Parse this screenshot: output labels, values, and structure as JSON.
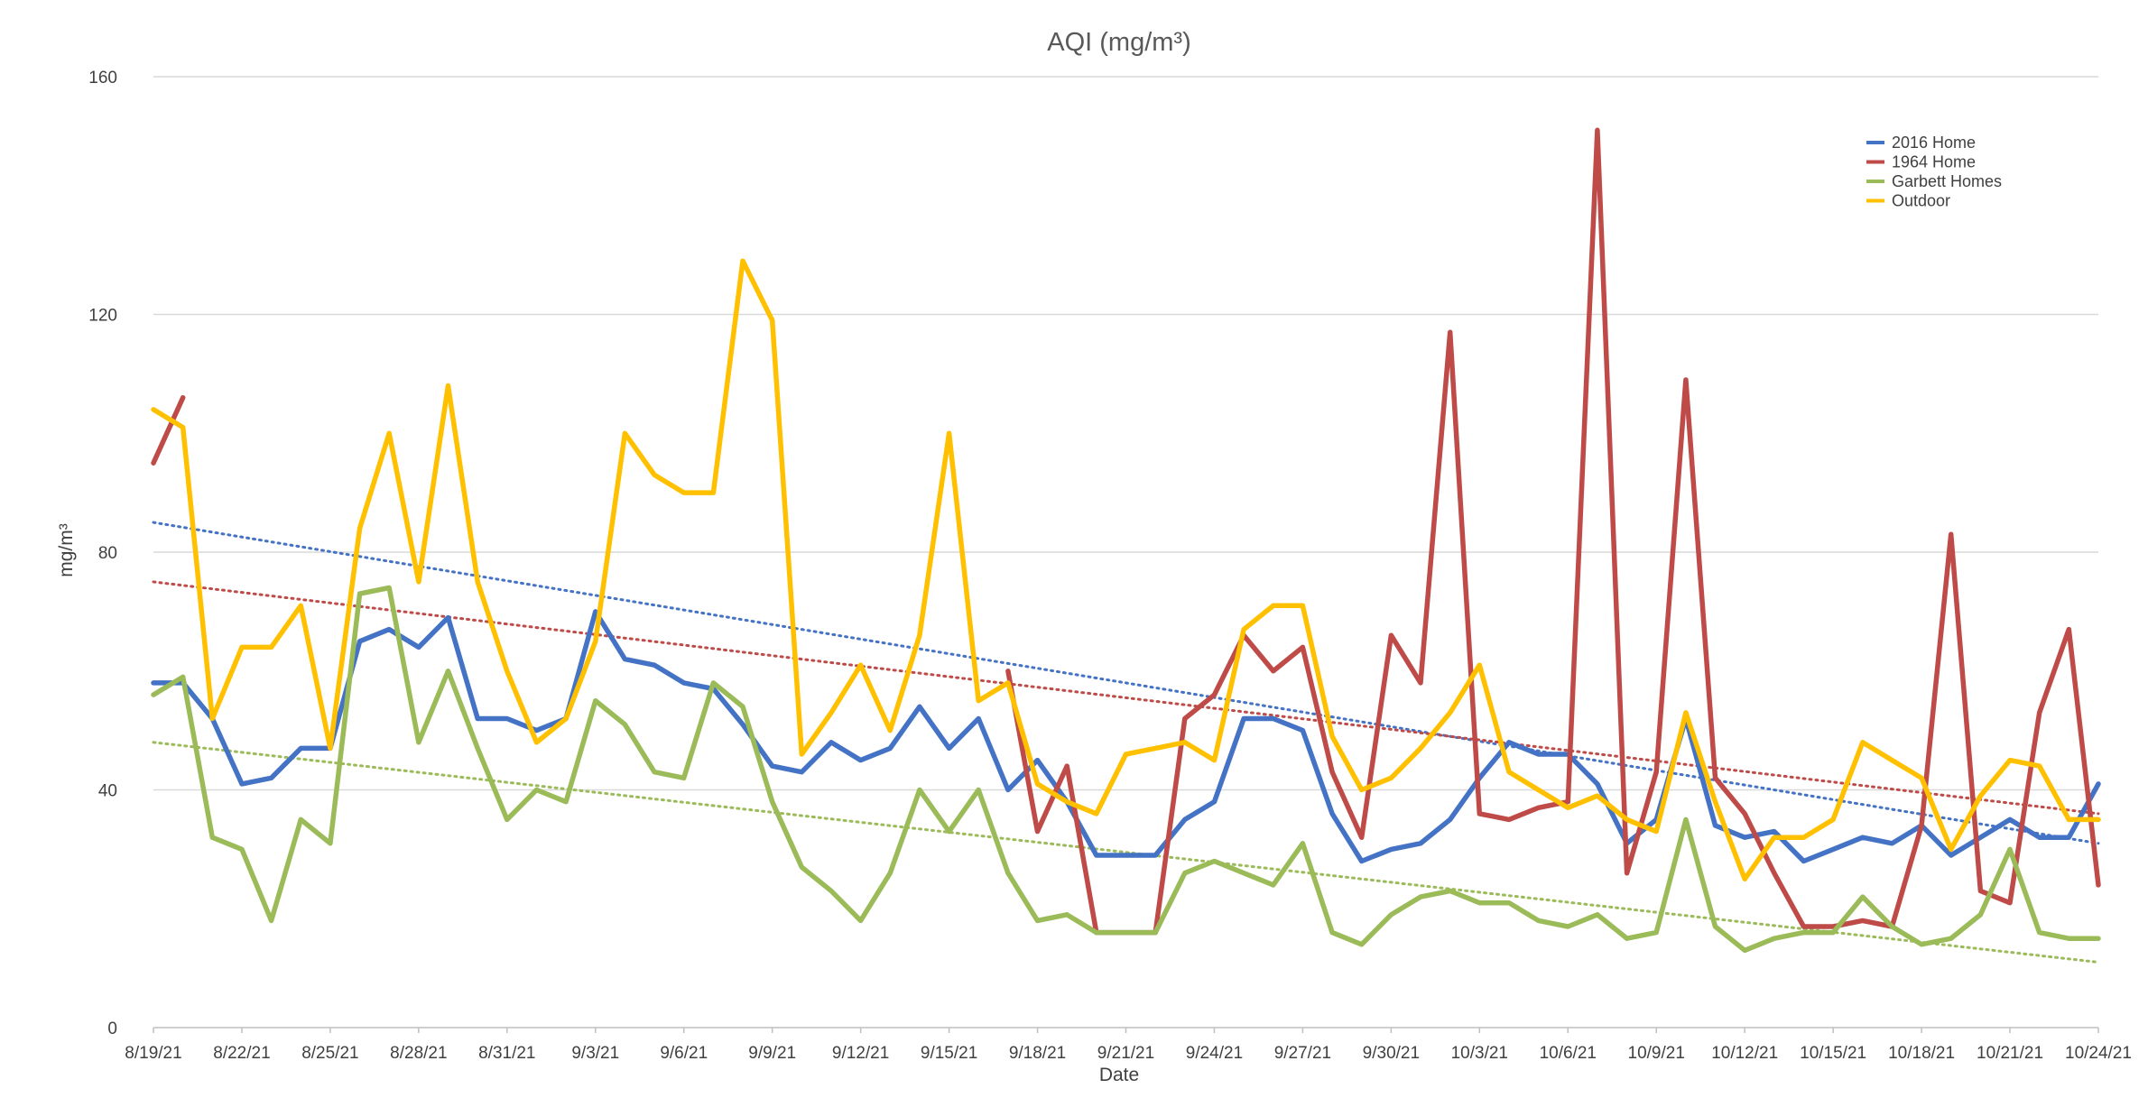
{
  "chart_data": {
    "type": "line",
    "title": "AQI (mg/m³)",
    "xlabel": "Date",
    "ylabel": "mg/m³",
    "ylim": [
      0,
      160
    ],
    "yticks": [
      0,
      40,
      80,
      120,
      160
    ],
    "grid": "horizontal",
    "legend_position": "top-right",
    "x_start": "2021-08-19",
    "x_end": "2021-10-24",
    "xtick_labels": [
      "8/19/21",
      "8/22/21",
      "8/25/21",
      "8/28/21",
      "8/31/21",
      "9/3/21",
      "9/6/21",
      "9/9/21",
      "9/12/21",
      "9/15/21",
      "9/18/21",
      "9/21/21",
      "9/24/21",
      "9/27/21",
      "9/30/21",
      "10/3/21",
      "10/6/21",
      "10/9/21",
      "10/12/21",
      "10/15/21",
      "10/18/21",
      "10/21/21",
      "10/24/21"
    ],
    "series": [
      {
        "name": "2016 Home",
        "color": "#4472c4",
        "values": [
          [
            "2021-08-19",
            58
          ],
          [
            "2021-08-20",
            58
          ],
          [
            "2021-08-21",
            52
          ],
          [
            "2021-08-22",
            41
          ],
          [
            "2021-08-23",
            42
          ],
          [
            "2021-08-24",
            47
          ],
          [
            "2021-08-25",
            47
          ],
          [
            "2021-08-26",
            65
          ],
          [
            "2021-08-27",
            67
          ],
          [
            "2021-08-28",
            64
          ],
          [
            "2021-08-29",
            69
          ],
          [
            "2021-08-30",
            52
          ],
          [
            "2021-08-31",
            52
          ],
          [
            "2021-09-01",
            50
          ],
          [
            "2021-09-02",
            52
          ],
          [
            "2021-09-03",
            70
          ],
          [
            "2021-09-04",
            62
          ],
          [
            "2021-09-05",
            61
          ],
          [
            "2021-09-06",
            58
          ],
          [
            "2021-09-07",
            57
          ],
          [
            "2021-09-08",
            51
          ],
          [
            "2021-09-09",
            44
          ],
          [
            "2021-09-10",
            43
          ],
          [
            "2021-09-11",
            48
          ],
          [
            "2021-09-12",
            45
          ],
          [
            "2021-09-13",
            47
          ],
          [
            "2021-09-14",
            54
          ],
          [
            "2021-09-15",
            47
          ],
          [
            "2021-09-16",
            52
          ],
          [
            "2021-09-17",
            40
          ],
          [
            "2021-09-18",
            45
          ],
          [
            "2021-09-19",
            38
          ],
          [
            "2021-09-20",
            29
          ],
          [
            "2021-09-21",
            29
          ],
          [
            "2021-09-22",
            29
          ],
          [
            "2021-09-23",
            35
          ],
          [
            "2021-09-24",
            38
          ],
          [
            "2021-09-25",
            52
          ],
          [
            "2021-09-26",
            52
          ],
          [
            "2021-09-27",
            50
          ],
          [
            "2021-09-28",
            36
          ],
          [
            "2021-09-29",
            28
          ],
          [
            "2021-09-30",
            30
          ],
          [
            "2021-10-01",
            31
          ],
          [
            "2021-10-02",
            35
          ],
          [
            "2021-10-03",
            42
          ],
          [
            "2021-10-04",
            48
          ],
          [
            "2021-10-05",
            46
          ],
          [
            "2021-10-06",
            46
          ],
          [
            "2021-10-07",
            41
          ],
          [
            "2021-10-08",
            31
          ],
          [
            "2021-10-09",
            35
          ],
          [
            "2021-10-10",
            52
          ],
          [
            "2021-10-11",
            34
          ],
          [
            "2021-10-12",
            32
          ],
          [
            "2021-10-13",
            33
          ],
          [
            "2021-10-14",
            28
          ],
          [
            "2021-10-15",
            30
          ],
          [
            "2021-10-16",
            32
          ],
          [
            "2021-10-17",
            31
          ],
          [
            "2021-10-18",
            34
          ],
          [
            "2021-10-19",
            29
          ],
          [
            "2021-10-20",
            32
          ],
          [
            "2021-10-21",
            35
          ],
          [
            "2021-10-22",
            32
          ],
          [
            "2021-10-23",
            32
          ],
          [
            "2021-10-24",
            41
          ]
        ],
        "trend": [
          85,
          31
        ]
      },
      {
        "name": "1964 Home",
        "color": "#be4b48",
        "values": [
          [
            "2021-08-19",
            95
          ],
          [
            "2021-08-20",
            106
          ],
          [
            "2021-09-17",
            60
          ],
          [
            "2021-09-18",
            33
          ],
          [
            "2021-09-19",
            44
          ],
          [
            "2021-09-20",
            16
          ],
          [
            "2021-09-21",
            16
          ],
          [
            "2021-09-22",
            16
          ],
          [
            "2021-09-23",
            52
          ],
          [
            "2021-09-24",
            56
          ],
          [
            "2021-09-25",
            66
          ],
          [
            "2021-09-26",
            60
          ],
          [
            "2021-09-27",
            64
          ],
          [
            "2021-09-28",
            43
          ],
          [
            "2021-09-29",
            32
          ],
          [
            "2021-09-30",
            66
          ],
          [
            "2021-10-01",
            58
          ],
          [
            "2021-10-02",
            117
          ],
          [
            "2021-10-03",
            36
          ],
          [
            "2021-10-04",
            35
          ],
          [
            "2021-10-05",
            37
          ],
          [
            "2021-10-06",
            38
          ],
          [
            "2021-10-07",
            151
          ],
          [
            "2021-10-08",
            26
          ],
          [
            "2021-10-09",
            43
          ],
          [
            "2021-10-10",
            109
          ],
          [
            "2021-10-11",
            42
          ],
          [
            "2021-10-12",
            36
          ],
          [
            "2021-10-13",
            26
          ],
          [
            "2021-10-14",
            17
          ],
          [
            "2021-10-15",
            17
          ],
          [
            "2021-10-16",
            18
          ],
          [
            "2021-10-17",
            17
          ],
          [
            "2021-10-18",
            34
          ],
          [
            "2021-10-19",
            83
          ],
          [
            "2021-10-20",
            23
          ],
          [
            "2021-10-21",
            21
          ],
          [
            "2021-10-22",
            53
          ],
          [
            "2021-10-23",
            67
          ],
          [
            "2021-10-24",
            24
          ]
        ],
        "trend": [
          75,
          36
        ]
      },
      {
        "name": "Garbett Homes",
        "color": "#9bbb59",
        "values": [
          [
            "2021-08-19",
            56
          ],
          [
            "2021-08-20",
            59
          ],
          [
            "2021-08-21",
            32
          ],
          [
            "2021-08-22",
            30
          ],
          [
            "2021-08-23",
            18
          ],
          [
            "2021-08-24",
            35
          ],
          [
            "2021-08-25",
            31
          ],
          [
            "2021-08-26",
            73
          ],
          [
            "2021-08-27",
            74
          ],
          [
            "2021-08-28",
            48
          ],
          [
            "2021-08-29",
            60
          ],
          [
            "2021-08-30",
            47
          ],
          [
            "2021-08-31",
            35
          ],
          [
            "2021-09-01",
            40
          ],
          [
            "2021-09-02",
            38
          ],
          [
            "2021-09-03",
            55
          ],
          [
            "2021-09-04",
            51
          ],
          [
            "2021-09-05",
            43
          ],
          [
            "2021-09-06",
            42
          ],
          [
            "2021-09-07",
            58
          ],
          [
            "2021-09-08",
            54
          ],
          [
            "2021-09-09",
            38
          ],
          [
            "2021-09-10",
            27
          ],
          [
            "2021-09-11",
            23
          ],
          [
            "2021-09-12",
            18
          ],
          [
            "2021-09-13",
            26
          ],
          [
            "2021-09-14",
            40
          ],
          [
            "2021-09-15",
            33
          ],
          [
            "2021-09-16",
            40
          ],
          [
            "2021-09-17",
            26
          ],
          [
            "2021-09-18",
            18
          ],
          [
            "2021-09-19",
            19
          ],
          [
            "2021-09-20",
            16
          ],
          [
            "2021-09-21",
            16
          ],
          [
            "2021-09-22",
            16
          ],
          [
            "2021-09-23",
            26
          ],
          [
            "2021-09-24",
            28
          ],
          [
            "2021-09-25",
            26
          ],
          [
            "2021-09-26",
            24
          ],
          [
            "2021-09-27",
            31
          ],
          [
            "2021-09-28",
            16
          ],
          [
            "2021-09-29",
            14
          ],
          [
            "2021-09-30",
            19
          ],
          [
            "2021-10-01",
            22
          ],
          [
            "2021-10-02",
            23
          ],
          [
            "2021-10-03",
            21
          ],
          [
            "2021-10-04",
            21
          ],
          [
            "2021-10-05",
            18
          ],
          [
            "2021-10-06",
            17
          ],
          [
            "2021-10-07",
            19
          ],
          [
            "2021-10-08",
            15
          ],
          [
            "2021-10-09",
            16
          ],
          [
            "2021-10-10",
            35
          ],
          [
            "2021-10-11",
            17
          ],
          [
            "2021-10-12",
            13
          ],
          [
            "2021-10-13",
            15
          ],
          [
            "2021-10-14",
            16
          ],
          [
            "2021-10-15",
            16
          ],
          [
            "2021-10-16",
            22
          ],
          [
            "2021-10-17",
            17
          ],
          [
            "2021-10-18",
            14
          ],
          [
            "2021-10-19",
            15
          ],
          [
            "2021-10-20",
            19
          ],
          [
            "2021-10-21",
            30
          ],
          [
            "2021-10-22",
            16
          ],
          [
            "2021-10-23",
            15
          ],
          [
            "2021-10-24",
            15
          ]
        ],
        "trend": [
          48,
          11
        ]
      },
      {
        "name": "Outdoor",
        "color": "#ffc000",
        "values": [
          [
            "2021-08-19",
            104
          ],
          [
            "2021-08-20",
            101
          ],
          [
            "2021-08-21",
            52
          ],
          [
            "2021-08-22",
            64
          ],
          [
            "2021-08-23",
            64
          ],
          [
            "2021-08-24",
            71
          ],
          [
            "2021-08-25",
            47
          ],
          [
            "2021-08-26",
            84
          ],
          [
            "2021-08-27",
            100
          ],
          [
            "2021-08-28",
            75
          ],
          [
            "2021-08-29",
            108
          ],
          [
            "2021-08-30",
            75
          ],
          [
            "2021-08-31",
            60
          ],
          [
            "2021-09-01",
            48
          ],
          [
            "2021-09-02",
            52
          ],
          [
            "2021-09-03",
            65
          ],
          [
            "2021-09-04",
            100
          ],
          [
            "2021-09-05",
            93
          ],
          [
            "2021-09-06",
            90
          ],
          [
            "2021-09-07",
            90
          ],
          [
            "2021-09-08",
            129
          ],
          [
            "2021-09-09",
            119
          ],
          [
            "2021-09-10",
            46
          ],
          [
            "2021-09-11",
            53
          ],
          [
            "2021-09-12",
            61
          ],
          [
            "2021-09-13",
            50
          ],
          [
            "2021-09-14",
            66
          ],
          [
            "2021-09-15",
            100
          ],
          [
            "2021-09-16",
            55
          ],
          [
            "2021-09-17",
            58
          ],
          [
            "2021-09-18",
            41
          ],
          [
            "2021-09-19",
            38
          ],
          [
            "2021-09-20",
            36
          ],
          [
            "2021-09-21",
            46
          ],
          [
            "2021-09-22",
            47
          ],
          [
            "2021-09-23",
            48
          ],
          [
            "2021-09-24",
            45
          ],
          [
            "2021-09-25",
            67
          ],
          [
            "2021-09-26",
            71
          ],
          [
            "2021-09-27",
            71
          ],
          [
            "2021-09-28",
            49
          ],
          [
            "2021-09-29",
            40
          ],
          [
            "2021-09-30",
            42
          ],
          [
            "2021-10-01",
            47
          ],
          [
            "2021-10-02",
            53
          ],
          [
            "2021-10-03",
            61
          ],
          [
            "2021-10-04",
            43
          ],
          [
            "2021-10-05",
            40
          ],
          [
            "2021-10-06",
            37
          ],
          [
            "2021-10-07",
            39
          ],
          [
            "2021-10-08",
            35
          ],
          [
            "2021-10-09",
            33
          ],
          [
            "2021-10-10",
            53
          ],
          [
            "2021-10-11",
            38
          ],
          [
            "2021-10-12",
            25
          ],
          [
            "2021-10-13",
            32
          ],
          [
            "2021-10-14",
            32
          ],
          [
            "2021-10-15",
            35
          ],
          [
            "2021-10-16",
            48
          ],
          [
            "2021-10-17",
            45
          ],
          [
            "2021-10-18",
            42
          ],
          [
            "2021-10-19",
            30
          ],
          [
            "2021-10-20",
            39
          ],
          [
            "2021-10-21",
            45
          ],
          [
            "2021-10-22",
            44
          ],
          [
            "2021-10-23",
            35
          ],
          [
            "2021-10-24",
            35
          ]
        ],
        "trend": null
      }
    ]
  }
}
